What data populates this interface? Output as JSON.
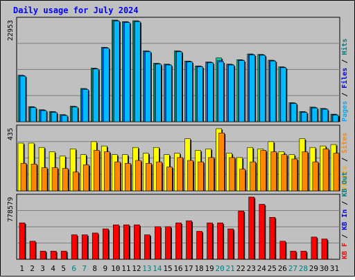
{
  "chart_data": [
    {
      "type": "bar",
      "title": "Daily usage for July 2024",
      "categories": [
        "1",
        "2",
        "3",
        "4",
        "5",
        "6",
        "7",
        "8",
        "9",
        "10",
        "11",
        "12",
        "13",
        "14",
        "15",
        "16",
        "17",
        "18",
        "19",
        "20",
        "21",
        "22",
        "23",
        "24",
        "25",
        "26",
        "27",
        "28",
        "29",
        "30",
        "31"
      ],
      "weekend_days": [
        "6",
        "7",
        "13",
        "14",
        "20",
        "21",
        "27",
        "28"
      ],
      "ylabel_segments": [
        {
          "text": "Pages",
          "color": "#00aaff"
        },
        {
          "text": " / ",
          "color": "#000000"
        },
        {
          "text": "Files",
          "color": "#0000ff"
        },
        {
          "text": " / ",
          "color": "#000000"
        },
        {
          "text": "Hits",
          "color": "#008080"
        }
      ],
      "y_tick_label": "22953",
      "ylim": [
        0,
        22953
      ],
      "series": [
        {
          "name": "Hits",
          "color": "#00cc99",
          "values": [
            10500,
            3400,
            2700,
            2300,
            1600,
            3500,
            7500,
            12100,
            16800,
            22953,
            22600,
            22800,
            16000,
            13200,
            13000,
            16000,
            13700,
            12600,
            13500,
            14400,
            13000,
            14000,
            15300,
            15200,
            13900,
            12400,
            4300,
            2300,
            3300,
            3000,
            1700
          ]
        },
        {
          "name": "Files",
          "color": "#0066ff",
          "values": [
            10400,
            3300,
            2600,
            2200,
            1500,
            3400,
            7400,
            12000,
            16700,
            22853,
            22500,
            22700,
            15900,
            13100,
            12900,
            15900,
            13600,
            12500,
            13400,
            13800,
            12900,
            13900,
            15200,
            15100,
            13800,
            12300,
            4200,
            2200,
            3200,
            2900,
            1600
          ]
        },
        {
          "name": "Pages",
          "color": "#00bbff",
          "values": [
            10300,
            3200,
            2500,
            2100,
            1400,
            3300,
            7300,
            11900,
            16600,
            22750,
            22400,
            22600,
            15800,
            13000,
            12800,
            15800,
            13500,
            12400,
            13300,
            13500,
            12800,
            13800,
            15100,
            15000,
            13700,
            12200,
            4100,
            2100,
            3100,
            2800,
            1500
          ]
        }
      ]
    },
    {
      "type": "bar",
      "categories": [
        "1",
        "2",
        "3",
        "4",
        "5",
        "6",
        "7",
        "8",
        "9",
        "10",
        "11",
        "12",
        "13",
        "14",
        "15",
        "16",
        "17",
        "18",
        "19",
        "20",
        "21",
        "22",
        "23",
        "24",
        "25",
        "26",
        "27",
        "28",
        "29",
        "30",
        "31"
      ],
      "ylabel_segments": [
        {
          "text": "Visits",
          "color": "#ffaa00"
        },
        {
          "text": " / ",
          "color": "#000000"
        },
        {
          "text": "Sites",
          "color": "#ff8800"
        }
      ],
      "y_tick_label": "435",
      "ylim": [
        0,
        435
      ],
      "series": [
        {
          "name": "Visits",
          "color": "#ffff00",
          "values": [
            330,
            330,
            300,
            270,
            240,
            290,
            250,
            340,
            310,
            250,
            250,
            300,
            260,
            300,
            250,
            260,
            360,
            280,
            290,
            430,
            260,
            230,
            300,
            290,
            340,
            270,
            250,
            360,
            300,
            310,
            320
          ]
        },
        {
          "name": "Sites",
          "color": "#ff8800",
          "values": [
            190,
            185,
            160,
            160,
            155,
            130,
            180,
            280,
            270,
            200,
            190,
            210,
            190,
            200,
            165,
            230,
            210,
            200,
            230,
            400,
            230,
            150,
            200,
            280,
            270,
            250,
            220,
            270,
            200,
            290,
            260
          ]
        }
      ]
    },
    {
      "type": "bar",
      "categories": [
        "1",
        "2",
        "3",
        "4",
        "5",
        "6",
        "7",
        "8",
        "9",
        "10",
        "11",
        "12",
        "13",
        "14",
        "15",
        "16",
        "17",
        "18",
        "19",
        "20",
        "21",
        "22",
        "23",
        "24",
        "25",
        "26",
        "27",
        "28",
        "29",
        "30",
        "31"
      ],
      "ylabel_segments": [
        {
          "text": "KB F",
          "color": "#ff0000"
        },
        {
          "text": " / ",
          "color": "#000000"
        },
        {
          "text": "KB In",
          "color": "#0000ff"
        },
        {
          "text": " / ",
          "color": "#000000"
        },
        {
          "text": "KB Out",
          "color": "#008080"
        }
      ],
      "y_tick_label": "778579",
      "ylim": [
        0,
        778579
      ],
      "series": [
        {
          "name": "KB F",
          "color": "#ff0000",
          "values": [
            455000,
            226000,
            102000,
            102000,
            102000,
            306000,
            306000,
            329000,
            380000,
            431000,
            431000,
            431000,
            306000,
            408000,
            408000,
            455000,
            481000,
            350000,
            455000,
            455000,
            380000,
            604000,
            778579,
            688000,
            525000,
            226000,
            102000,
            102000,
            278000,
            254000,
            0
          ]
        }
      ]
    }
  ]
}
